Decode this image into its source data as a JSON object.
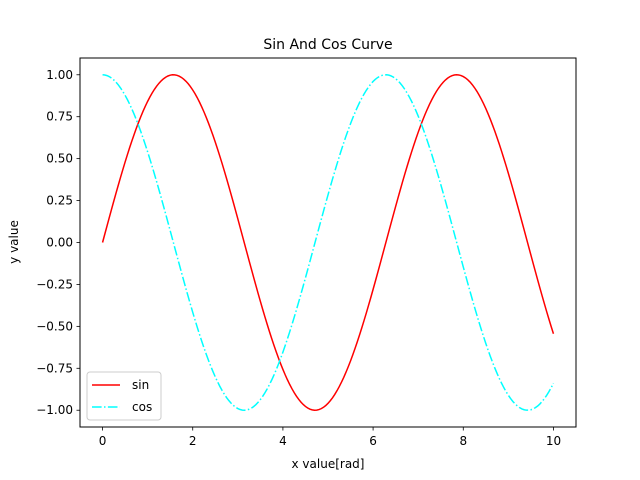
{
  "chart_data": {
    "type": "line",
    "title": "Sin And Cos Curve",
    "xlabel": "x value[rad]",
    "ylabel": "y value",
    "xlim": [
      -0.5,
      10.5
    ],
    "ylim": [
      -1.1,
      1.1
    ],
    "xticks": [
      0,
      2,
      4,
      6,
      8,
      10
    ],
    "xtick_labels": [
      "0",
      "2",
      "4",
      "6",
      "8",
      "10"
    ],
    "yticks": [
      -1.0,
      -0.75,
      -0.5,
      -0.25,
      0.0,
      0.25,
      0.5,
      0.75,
      1.0
    ],
    "ytick_labels": [
      "−1.00",
      "−0.75",
      "−0.50",
      "−0.25",
      "0.00",
      "0.25",
      "0.50",
      "0.75",
      "1.00"
    ],
    "grid": false,
    "legend_position": "lower-left",
    "series": [
      {
        "name": "sin",
        "function": "sin",
        "x_range": [
          0,
          10
        ],
        "samples": 200,
        "color": "#ff0000",
        "line_style": "solid"
      },
      {
        "name": "cos",
        "function": "cos",
        "x_range": [
          0,
          10
        ],
        "samples": 200,
        "color": "#00ffff",
        "line_style": "dashdot"
      }
    ]
  }
}
